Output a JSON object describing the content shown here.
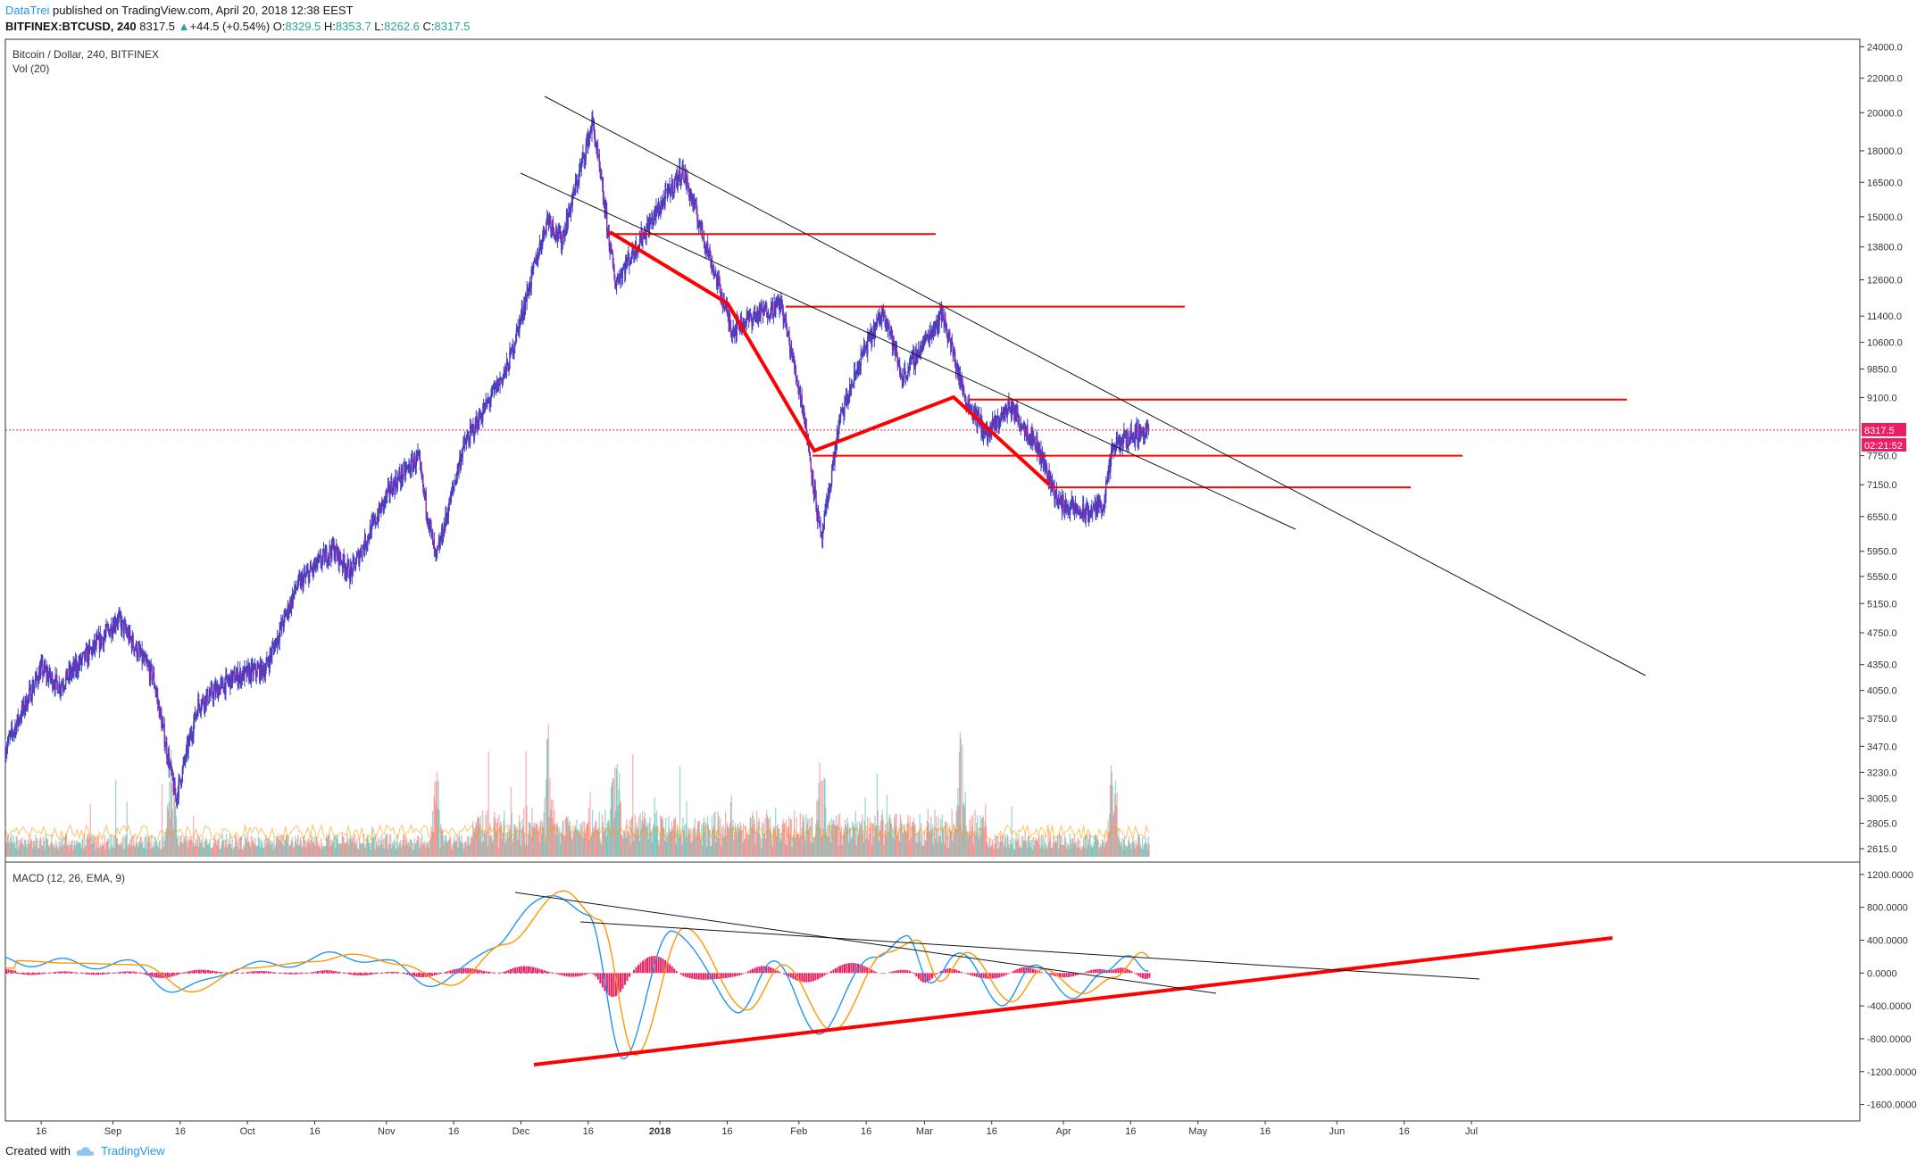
{
  "header": {
    "author": "DataTrei",
    "published": " published on TradingView.com, April 20, 2018 12:38 EEST",
    "symbol": "BITFINEX:BTCUSD, 240",
    "last": "8317.5",
    "change": "+44.5 (+0.54%)",
    "o_label": "O:",
    "o_value": "8329.5",
    "h_label": "H:",
    "h_value": "8353.7",
    "l_label": "L:",
    "l_value": "8262.6",
    "c_label": "C:",
    "c_value": "8317.5"
  },
  "footer": {
    "created_with": "Created with",
    "brand": "TradingView"
  },
  "colors": {
    "up": "#26a69a",
    "down": "#ef5350",
    "candle": "#3f3fbf",
    "drawing_red": "#ff0000",
    "trend_black": "#131722",
    "macd_line": "#2196f3",
    "signal_line": "#ff9800",
    "histogram": "#e91e63",
    "price_label_bg": "#e91e63"
  },
  "chart_data": [
    {
      "type": "candlestick",
      "title": "Bitcoin / Dollar, 240, BITFINEX",
      "indicator_label": "Vol (20)",
      "y_scale": "log",
      "ylim": [
        2520,
        24500
      ],
      "y_ticks": [
        "24000.0",
        "22000.0",
        "20000.0",
        "18000.0",
        "16500.0",
        "15000.0",
        "13800.0",
        "12600.0",
        "11400.0",
        "10600.0",
        "9850.0",
        "9100.0",
        "7750.0",
        "7150.0",
        "6550.0",
        "5950.0",
        "5550.0",
        "5150.0",
        "4750.0",
        "4350.0",
        "4050.0",
        "3750.0",
        "3470.0",
        "3230.0",
        "3005.0",
        "2805.0",
        "2615.0"
      ],
      "x_ticks": [
        "16",
        "Sep",
        "16",
        "Oct",
        "16",
        "Nov",
        "16",
        "Dec",
        "16",
        "2018",
        "16",
        "Feb",
        "16",
        "Mar",
        "16",
        "Apr",
        "16",
        "May",
        "16",
        "Jun",
        "16",
        "Jul"
      ],
      "current_price_label": "8317.5",
      "countdown_label": "02:21:52",
      "price_path": [
        [
          "2017-08-08",
          3450
        ],
        [
          "2017-08-16",
          4300
        ],
        [
          "2017-08-20",
          4100
        ],
        [
          "2017-08-30",
          4700
        ],
        [
          "2017-09-02",
          4950
        ],
        [
          "2017-09-10",
          4200
        ],
        [
          "2017-09-15",
          3000
        ],
        [
          "2017-09-20",
          3900
        ],
        [
          "2017-09-28",
          4200
        ],
        [
          "2017-10-05",
          4300
        ],
        [
          "2017-10-12",
          5400
        ],
        [
          "2017-10-20",
          6000
        ],
        [
          "2017-10-24",
          5600
        ],
        [
          "2017-11-02",
          7100
        ],
        [
          "2017-11-08",
          7700
        ],
        [
          "2017-11-12",
          5800
        ],
        [
          "2017-11-18",
          7900
        ],
        [
          "2017-11-28",
          9900
        ],
        [
          "2017-12-07",
          15000
        ],
        [
          "2017-12-10",
          14000
        ],
        [
          "2017-12-17",
          19500
        ],
        [
          "2017-12-22",
          12500
        ],
        [
          "2017-12-28",
          14200
        ],
        [
          "2018-01-06",
          17100
        ],
        [
          "2018-01-12",
          13500
        ],
        [
          "2018-01-17",
          11000
        ],
        [
          "2018-01-22",
          11400
        ],
        [
          "2018-01-28",
          11800
        ],
        [
          "2018-02-02",
          8800
        ],
        [
          "2018-02-06",
          6100
        ],
        [
          "2018-02-10",
          8500
        ],
        [
          "2018-02-15",
          10200
        ],
        [
          "2018-02-20",
          11600
        ],
        [
          "2018-02-24",
          9600
        ],
        [
          "2018-03-05",
          11500
        ],
        [
          "2018-03-10",
          9100
        ],
        [
          "2018-03-15",
          8200
        ],
        [
          "2018-03-20",
          8900
        ],
        [
          "2018-03-26",
          8000
        ],
        [
          "2018-03-31",
          6800
        ],
        [
          "2018-04-06",
          6600
        ],
        [
          "2018-04-10",
          6800
        ],
        [
          "2018-04-12",
          7900
        ],
        [
          "2018-04-16",
          8200
        ],
        [
          "2018-04-20",
          8317.5
        ]
      ],
      "volume_peak_dates": [
        "2017-09-14",
        "2017-11-12",
        "2017-12-07",
        "2017-12-22",
        "2018-02-06",
        "2018-03-09",
        "2018-04-12"
      ]
    },
    {
      "type": "line",
      "title": "MACD (12, 26, EMA, 9)",
      "ylim": [
        -1800,
        1350
      ],
      "y_ticks": [
        "1200.0000",
        "800.0000",
        "400.0000",
        "0.0000",
        "-400.0000",
        "-800.0000",
        "-1200.0000",
        "-1600.0000"
      ],
      "series": [
        {
          "name": "",
          "color": "#2196f3",
          "values": [
            [
              "2017-08-08",
              150
            ],
            [
              "2017-08-20",
              120
            ],
            [
              "2017-09-05",
              100
            ],
            [
              "2017-09-16",
              -230
            ],
            [
              "2017-09-28",
              60
            ],
            [
              "2017-10-14",
              140
            ],
            [
              "2017-10-22",
              230
            ],
            [
              "2017-11-02",
              100
            ],
            [
              "2017-11-13",
              -150
            ],
            [
              "2017-11-25",
              350
            ],
            [
              "2017-12-08",
              1000
            ],
            [
              "2017-12-16",
              650
            ],
            [
              "2017-12-24",
              -1000
            ],
            [
              "2018-01-04",
              550
            ],
            [
              "2018-01-18",
              -450
            ],
            [
              "2018-01-26",
              100
            ],
            [
              "2018-02-06",
              -700
            ],
            [
              "2018-02-18",
              250
            ],
            [
              "2018-02-25",
              400
            ],
            [
              "2018-03-02",
              -100
            ],
            [
              "2018-03-08",
              250
            ],
            [
              "2018-03-18",
              -350
            ],
            [
              "2018-03-25",
              50
            ],
            [
              "2018-04-03",
              -250
            ],
            [
              "2018-04-10",
              -50
            ],
            [
              "2018-04-16",
              250
            ],
            [
              "2018-04-20",
              60
            ]
          ]
        }
      ],
      "histogram_peaks": [
        [
          "2017-12-22",
          -300
        ],
        [
          "2018-01-02",
          250
        ],
        [
          "2018-01-14",
          -220
        ],
        [
          "2018-02-04",
          -150
        ],
        [
          "2018-02-14",
          220
        ],
        [
          "2018-03-14",
          -200
        ],
        [
          "2018-04-13",
          80
        ]
      ]
    }
  ],
  "drawings": {
    "red_horizontal_levels": [
      14300,
      11700,
      9050,
      7750,
      7100
    ],
    "trendlines_black": 2,
    "red_zigzag_path": [
      "14300",
      "11700",
      "7750",
      "9050",
      "7100"
    ]
  }
}
